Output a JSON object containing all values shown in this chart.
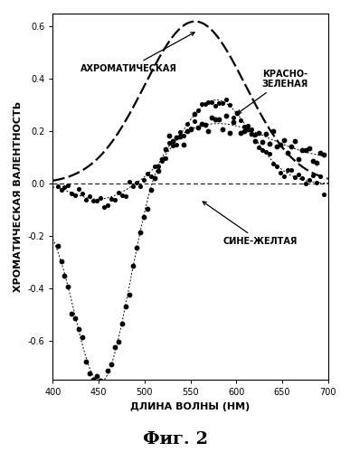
{
  "title": "Фиг. 2",
  "xlabel": "ДЛИНА ВОЛНЫ (НМ)",
  "ylabel": "ХРОМАТИЧЕСКАЯ ВАЛЕНТНОСТЬ",
  "xlim": [
    400,
    700
  ],
  "ylim": [
    -0.75,
    0.65
  ],
  "yticks": [
    0.6,
    0.4,
    0.2,
    0.0,
    -0.2,
    -0.4,
    -0.6
  ],
  "ytick_labels": [
    "0.6",
    "0.4",
    "0.2",
    "0.0",
    "-0.2",
    "-0.4",
    "-0.6"
  ],
  "xticks": [
    400,
    450,
    500,
    550,
    600,
    650,
    700
  ],
  "xtick_labels": [
    "400",
    "450",
    "500",
    "550",
    "600",
    "650",
    "700"
  ],
  "label_achromatic": "АХРОМАТИЧЕСКАЯ",
  "label_rg": "КРАСНО-\nЗЕЛЕНАЯ",
  "label_by": "СИНЕ-ЖЕЛТАЯ",
  "fig2_label": "Фиг. 2",
  "background_color": "#ffffff",
  "curve_color": "#000000"
}
